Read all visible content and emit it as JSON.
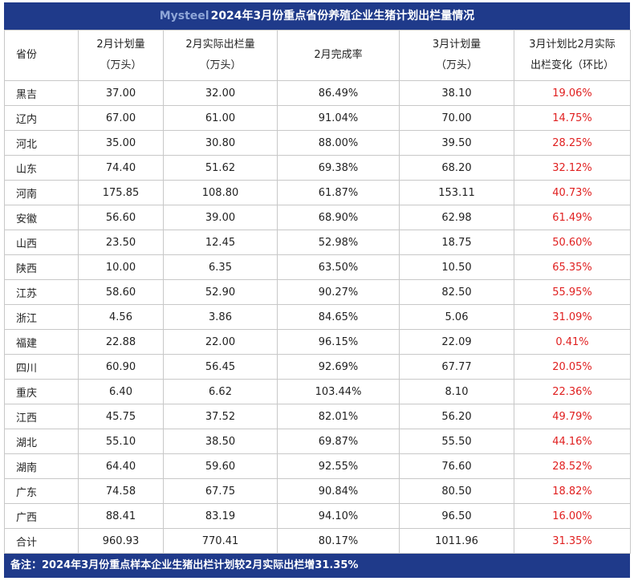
{
  "header": {
    "brand": "Mysteel",
    "title": "2024年3月份重点省份养殖企业生猪计划出栏量情况"
  },
  "table": {
    "columns": [
      [
        "省份"
      ],
      [
        "2月计划量",
        "（万头）"
      ],
      [
        "2月实际出栏量",
        "（万头）"
      ],
      [
        "2月完成率"
      ],
      [
        "3月计划量",
        "（万头）"
      ],
      [
        "3月计划比2月实际",
        "出栏变化（环比）"
      ]
    ],
    "rows": [
      [
        "黑吉",
        "37.00",
        "32.00",
        "86.49%",
        "38.10",
        "19.06%"
      ],
      [
        "辽内",
        "67.00",
        "61.00",
        "91.04%",
        "70.00",
        "14.75%"
      ],
      [
        "河北",
        "35.00",
        "30.80",
        "88.00%",
        "39.50",
        "28.25%"
      ],
      [
        "山东",
        "74.40",
        "51.62",
        "69.38%",
        "68.20",
        "32.12%"
      ],
      [
        "河南",
        "175.85",
        "108.80",
        "61.87%",
        "153.11",
        "40.73%"
      ],
      [
        "安徽",
        "56.60",
        "39.00",
        "68.90%",
        "62.98",
        "61.49%"
      ],
      [
        "山西",
        "23.50",
        "12.45",
        "52.98%",
        "18.75",
        "50.60%"
      ],
      [
        "陕西",
        "10.00",
        "6.35",
        "63.50%",
        "10.50",
        "65.35%"
      ],
      [
        "江苏",
        "58.60",
        "52.90",
        "90.27%",
        "82.50",
        "55.95%"
      ],
      [
        "浙江",
        "4.56",
        "3.86",
        "84.65%",
        "5.06",
        "31.09%"
      ],
      [
        "福建",
        "22.88",
        "22.00",
        "96.15%",
        "22.09",
        "0.41%"
      ],
      [
        "四川",
        "60.90",
        "56.45",
        "92.69%",
        "67.77",
        "20.05%"
      ],
      [
        "重庆",
        "6.40",
        "6.62",
        "103.44%",
        "8.10",
        "22.36%"
      ],
      [
        "江西",
        "45.75",
        "37.52",
        "82.01%",
        "56.20",
        "49.79%"
      ],
      [
        "湖北",
        "55.10",
        "38.50",
        "69.87%",
        "55.50",
        "44.16%"
      ],
      [
        "湖南",
        "64.40",
        "59.60",
        "92.55%",
        "76.60",
        "28.52%"
      ],
      [
        "广东",
        "74.58",
        "67.75",
        "90.84%",
        "80.50",
        "18.82%"
      ],
      [
        "广西",
        "88.41",
        "83.19",
        "94.10%",
        "96.50",
        "16.00%"
      ],
      [
        "合计",
        "960.93",
        "770.41",
        "80.17%",
        "1011.96",
        "31.35%"
      ]
    ]
  },
  "footer": {
    "note": "备注：2024年3月份重点样本企业生猪出栏计划较2月实际出栏增31.35%"
  }
}
